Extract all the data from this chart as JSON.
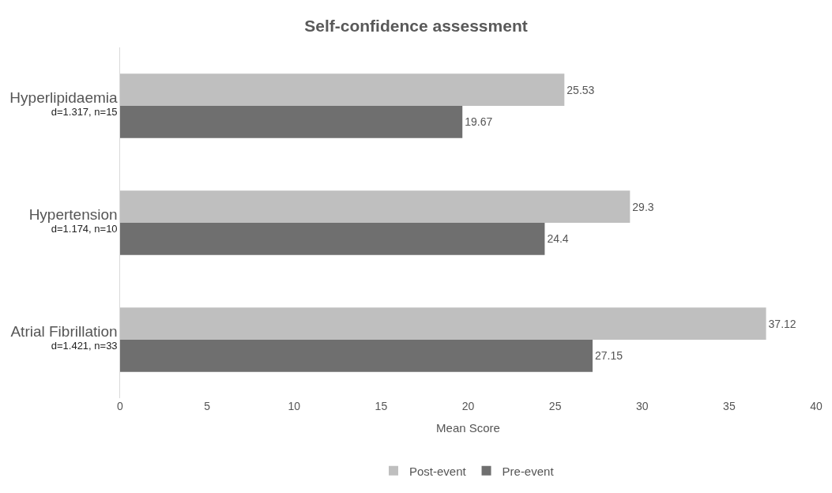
{
  "chart_data": {
    "type": "bar",
    "orientation": "horizontal",
    "title": "Self-confidence assessment",
    "xlabel": "Mean Score",
    "categories": [
      "Hyperlipidaemia\nd=1.317, n=15",
      "Hypertension\nd=1.174, n=10",
      "Atrial Fibrillation\nd=1.421, n=33"
    ],
    "series": [
      {
        "name": "Post-event",
        "color": "#bfbfbf",
        "values": [
          25.53,
          29.3,
          37.12
        ]
      },
      {
        "name": "Pre-event",
        "color": "#6f6f6f",
        "values": [
          19.67,
          24.4,
          27.15
        ]
      }
    ],
    "xlim": [
      0,
      40
    ],
    "xticks": [
      0,
      5,
      10,
      15,
      20,
      25,
      30,
      35,
      40
    ],
    "data_labels": true,
    "legend": "bottom"
  }
}
